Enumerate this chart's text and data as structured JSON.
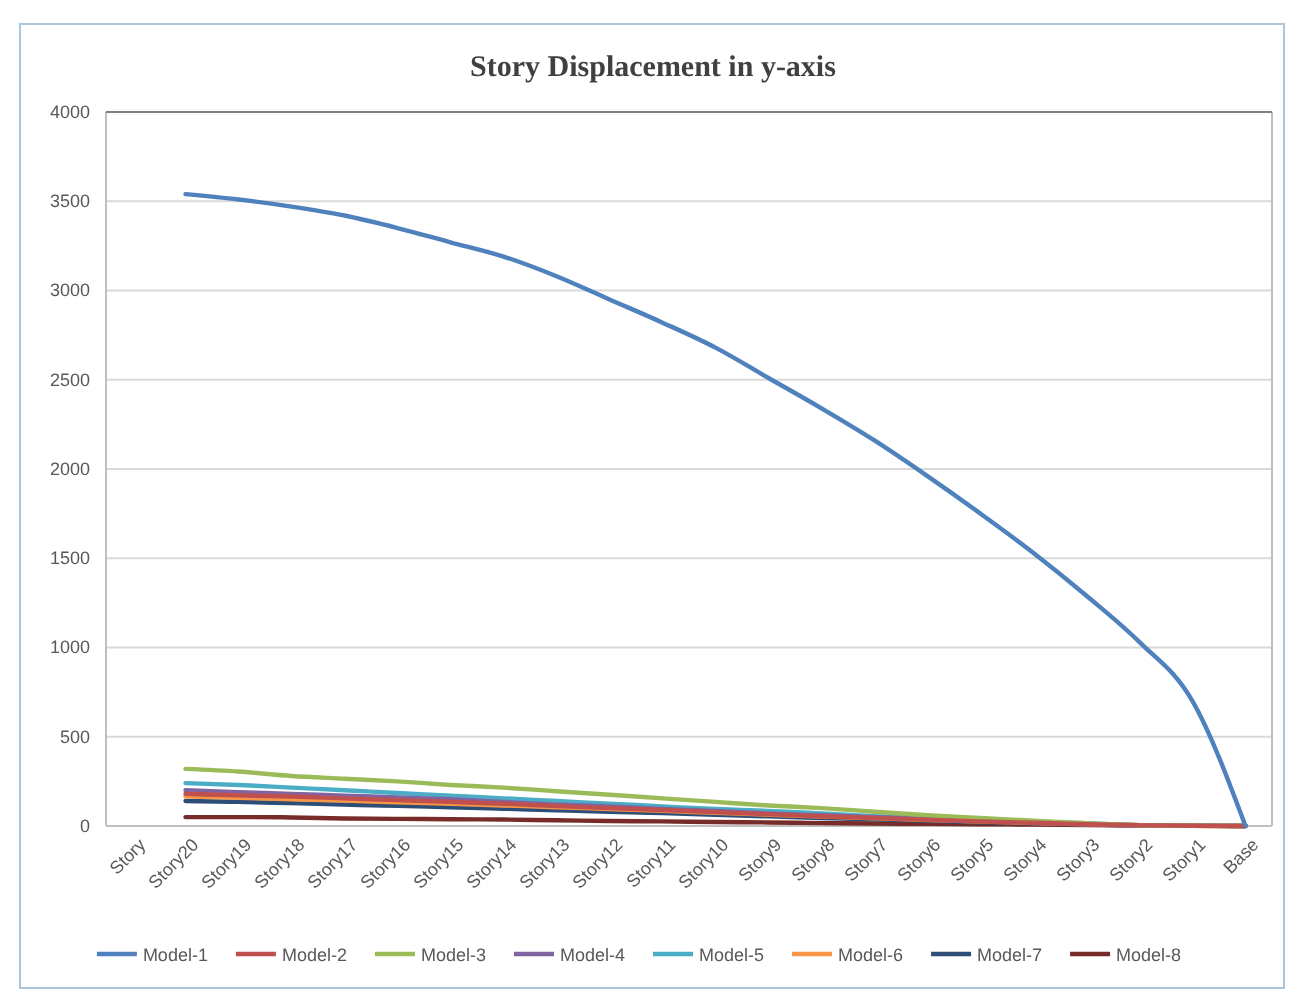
{
  "chart_data": {
    "type": "line",
    "title": "Story Displacement in y-axis",
    "categories": [
      "Story",
      "Story20",
      "Story19",
      "Story18",
      "Story17",
      "Story16",
      "Story15",
      "Story14",
      "Story13",
      "Story12",
      "Story11",
      "Story10",
      "Story9",
      "Story8",
      "Story7",
      "Story6",
      "Story5",
      "Story4",
      "Story3",
      "Story2",
      "Story1",
      "Base"
    ],
    "series": [
      {
        "name": "Model-1",
        "color": "#4f81bd",
        "values": [
          null,
          3540,
          3510,
          3470,
          3420,
          3350,
          3270,
          3190,
          3080,
          2950,
          2820,
          2680,
          2510,
          2340,
          2160,
          1960,
          1750,
          1530,
          1290,
          1030,
          700,
          0
        ]
      },
      {
        "name": "Model-2",
        "color": "#c0504d",
        "values": [
          null,
          180,
          172,
          165,
          155,
          145,
          135,
          125,
          112,
          100,
          90,
          78,
          66,
          55,
          45,
          35,
          25,
          18,
          10,
          4,
          1,
          0
        ]
      },
      {
        "name": "Model-3",
        "color": "#9bbb59",
        "values": [
          null,
          320,
          305,
          280,
          265,
          250,
          230,
          215,
          195,
          175,
          155,
          135,
          115,
          100,
          80,
          60,
          45,
          30,
          15,
          5,
          2,
          0
        ]
      },
      {
        "name": "Model-4",
        "color": "#8064a2",
        "values": [
          null,
          200,
          190,
          180,
          170,
          160,
          150,
          135,
          120,
          110,
          95,
          85,
          70,
          60,
          50,
          40,
          30,
          20,
          10,
          5,
          2,
          0
        ]
      },
      {
        "name": "Model-5",
        "color": "#4bacc6",
        "values": [
          null,
          240,
          230,
          215,
          200,
          185,
          170,
          155,
          140,
          125,
          110,
          95,
          85,
          70,
          55,
          45,
          35,
          25,
          15,
          5,
          2,
          0
        ]
      },
      {
        "name": "Model-6",
        "color": "#f79646",
        "values": [
          null,
          165,
          158,
          150,
          142,
          133,
          125,
          115,
          105,
          95,
          85,
          74,
          63,
          53,
          43,
          34,
          25,
          17,
          9,
          4,
          1,
          0
        ]
      },
      {
        "name": "Model-7",
        "color": "#2c4d75",
        "values": [
          null,
          140,
          135,
          128,
          120,
          113,
          105,
          97,
          88,
          80,
          72,
          63,
          54,
          45,
          37,
          29,
          21,
          14,
          8,
          3,
          1,
          0
        ]
      },
      {
        "name": "Model-8",
        "color": "#772c2a",
        "values": [
          null,
          50,
          50,
          48,
          42,
          40,
          38,
          36,
          32,
          28,
          26,
          22,
          20,
          16,
          14,
          12,
          10,
          8,
          5,
          3,
          1,
          0
        ]
      }
    ],
    "ylim": [
      0,
      4000
    ],
    "yticks": [
      0,
      500,
      1000,
      1500,
      2000,
      2500,
      3000,
      3500,
      4000
    ],
    "grid": "y",
    "legend": "bottom",
    "marker": "none",
    "line_style": "solid"
  }
}
